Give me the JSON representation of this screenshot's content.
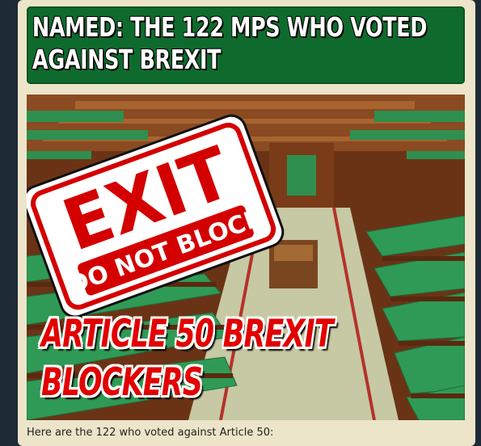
{
  "article": {
    "headline": "NAMED: THE 122 MPS WHO VOTED AGAINST BREXIT",
    "headline_line1": "NAMED: THE 122 MPS WHO VOTED",
    "headline_line2": "AGAINST BREXIT",
    "image": {
      "sticker_word_main": "EXIT",
      "sticker_word_sub": "DO NOT BLOCK",
      "overlay_line1": "ARTICLE 50 BREXIT",
      "overlay_line2": "BLOCKERS"
    },
    "caption": "Here are the 122 who voted against Article 50:"
  },
  "colors": {
    "headline_bg": "#0f6b2d",
    "page_bg": "#ece5c9",
    "outer_bg": "#1e2a35",
    "overlay_red": "#e20000",
    "bench_green": "#2f9a55"
  }
}
